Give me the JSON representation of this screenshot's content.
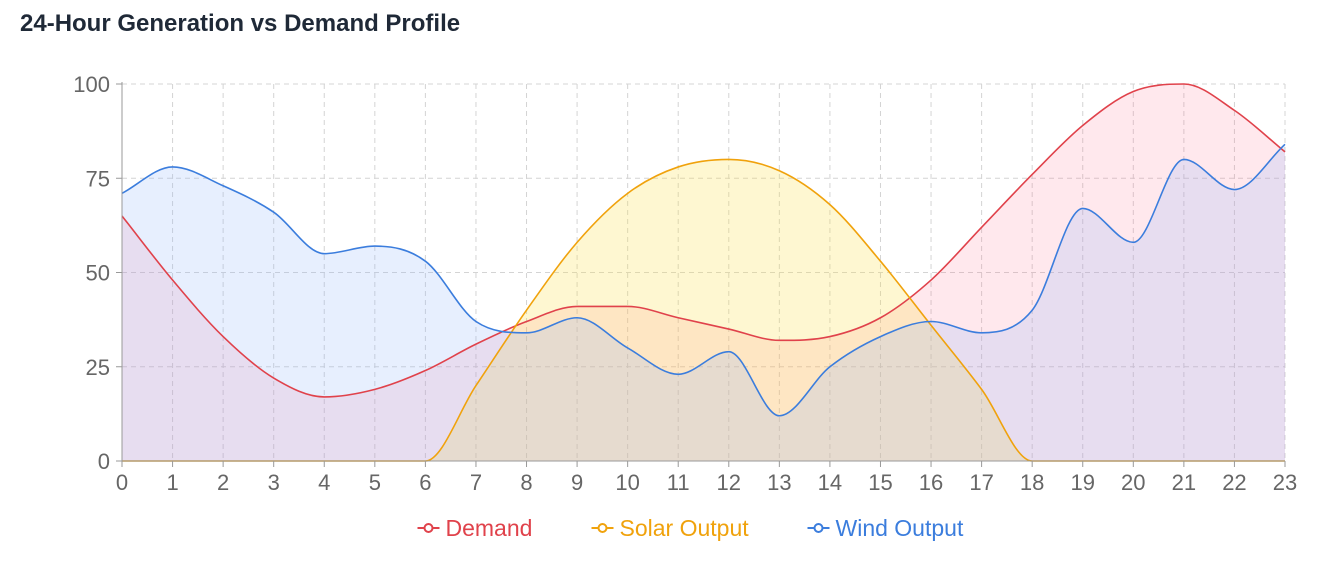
{
  "title": "24-Hour Generation vs Demand Profile",
  "chart_data": {
    "type": "area",
    "x": [
      0,
      1,
      2,
      3,
      4,
      5,
      6,
      7,
      8,
      9,
      10,
      11,
      12,
      13,
      14,
      15,
      16,
      17,
      18,
      19,
      20,
      21,
      22,
      23
    ],
    "x_tick_labels": [
      "0",
      "1",
      "2",
      "3",
      "4",
      "5",
      "6",
      "7",
      "8",
      "9",
      "10",
      "11",
      "12",
      "13",
      "14",
      "15",
      "16",
      "17",
      "18",
      "19",
      "20",
      "21",
      "22",
      "23"
    ],
    "ylim": [
      0,
      100
    ],
    "y_ticks": [
      0,
      25,
      50,
      75,
      100
    ],
    "grid": true,
    "legend_position": "bottom",
    "series": [
      {
        "name": "Demand",
        "color": "#e0424b",
        "fill": "rgba(255,99,132,0.15)",
        "values": [
          65,
          48,
          33,
          22,
          17,
          19,
          24,
          31,
          37,
          41,
          41,
          38,
          35,
          32,
          33,
          38,
          48,
          62,
          76,
          89,
          98,
          100,
          93,
          82
        ]
      },
      {
        "name": "Solar Output",
        "color": "#f0a20c",
        "fill": "rgba(253,224,71,0.25)",
        "values": [
          0,
          0,
          0,
          0,
          0,
          0,
          0,
          20,
          40,
          58,
          71,
          78,
          80,
          77,
          68,
          53,
          36,
          19,
          0,
          0,
          0,
          0,
          0,
          0
        ]
      },
      {
        "name": "Wind Output",
        "color": "#3b7ddd",
        "fill": "rgba(147,180,250,0.22)",
        "values": [
          71,
          78,
          73,
          66,
          55,
          57,
          53,
          37,
          34,
          38,
          30,
          23,
          29,
          12,
          25,
          33,
          37,
          34,
          40,
          67,
          58,
          80,
          72,
          84
        ]
      }
    ]
  }
}
